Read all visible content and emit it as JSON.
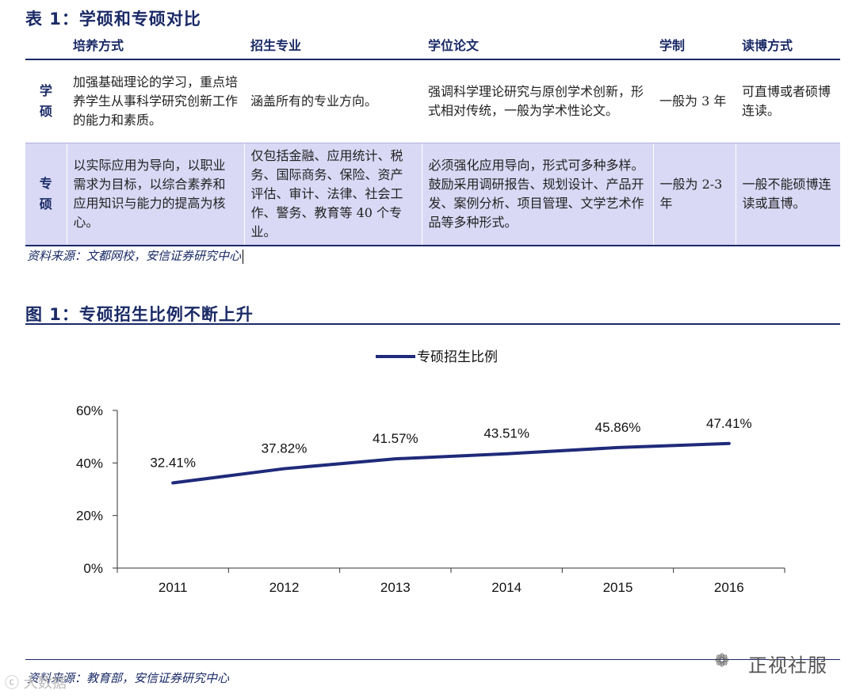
{
  "table": {
    "title": "表 1：学硕和专硕对比",
    "headers": [
      "培养方式",
      "招生专业",
      "学位论文",
      "学制",
      "读博方式"
    ],
    "rows": [
      {
        "label": "学\n硕",
        "cells": [
          "加强基础理论的学习，重点培养学生从事科学研究创新工作的能力和素质。",
          "涵盖所有的专业方向。",
          "强调科学理论研究与原创学术创新，形式相对传统，一般为学术性论文。",
          "一般为 3 年",
          "可直博或者硕博连读。"
        ]
      },
      {
        "label": "专\n硕",
        "cells": [
          "以实际应用为导向，以职业需求为目标，以综合素养和应用知识与能力的提高为核心。",
          "仅包括金融、应用统计、税务、国际商务、保险、资产评估、审计、法律、社会工作、警务、教育等 40 个专业。",
          "必须强化应用导向，形式可多种多样。鼓励采用调研报告、规划设计、产品开发、案例分析、项目管理、文学艺术作品等多种形式。",
          "一般为 2-3 年",
          "一般不能硕博连读或直博。"
        ]
      }
    ],
    "source": "资料来源：文都网校，安信证券研究中心"
  },
  "figure": {
    "title": "图 1：专硕招生比例不断上升",
    "source": "资料来源：教育部，安信证券研究中心"
  },
  "chart_data": {
    "type": "line",
    "title": "",
    "legend": [
      "专硕招生比例"
    ],
    "legend_position": "top-center",
    "x": [
      "2011",
      "2012",
      "2013",
      "2014",
      "2015",
      "2016"
    ],
    "series": [
      {
        "name": "专硕招生比例",
        "values": [
          32.41,
          37.82,
          41.57,
          43.51,
          45.86,
          47.41
        ]
      }
    ],
    "data_labels": [
      "32.41%",
      "37.82%",
      "41.57%",
      "43.51%",
      "45.86%",
      "47.41%"
    ],
    "y_ticks": [
      "0%",
      "20%",
      "40%",
      "60%"
    ],
    "ylim": [
      0,
      60
    ],
    "color": "#1f2a7a",
    "grid": false
  },
  "watermark": {
    "text": "正视社服",
    "icon": "wechat-icon",
    "left_text": "ⓒ 大数据"
  }
}
